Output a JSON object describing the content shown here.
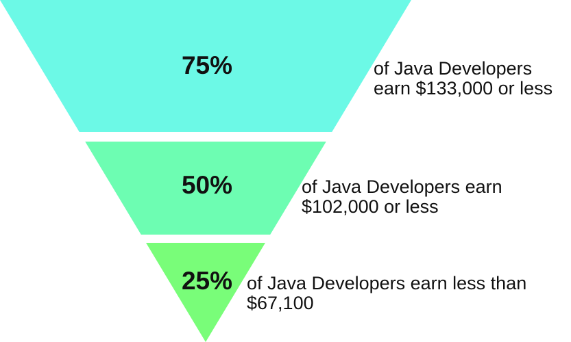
{
  "chart_data": {
    "type": "funnel",
    "categories": [
      "of Java Developers earn $133,000 or less",
      "of Java Developers earn $102,000 or less",
      "of Java Developers earn less than $67,100"
    ],
    "values": [
      75,
      50,
      25
    ],
    "value_labels": [
      "75%",
      "50%",
      "25%"
    ],
    "colors": [
      "#6cf9e6",
      "#6dfdb2",
      "#79fd79"
    ]
  }
}
